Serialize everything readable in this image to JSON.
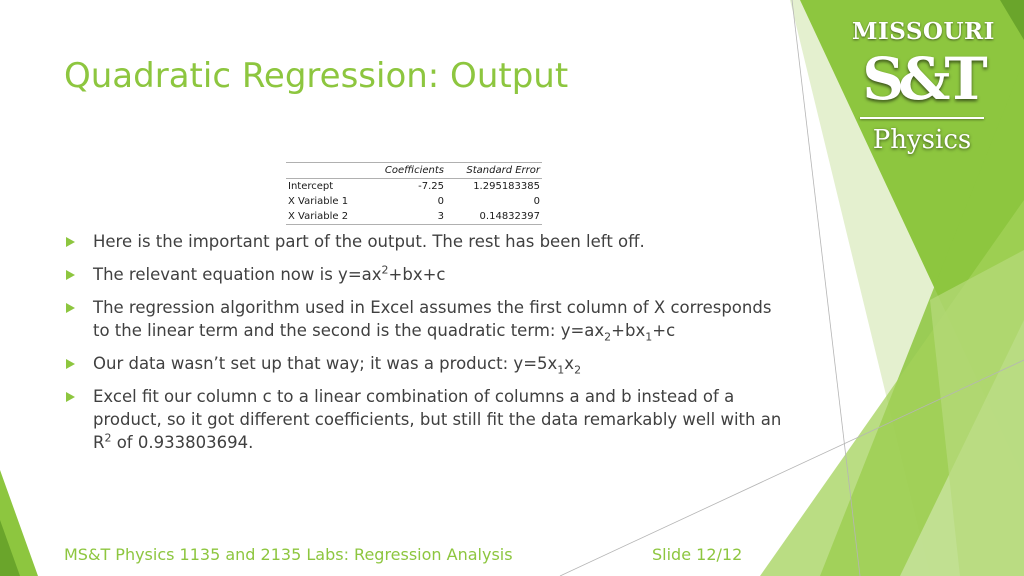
{
  "slide": {
    "title": "Quadratic Regression: Output",
    "accent_color": "#8dc63f"
  },
  "logo": {
    "line1": "MISSOURI",
    "line2": "S&T",
    "line3": "Physics"
  },
  "regression_table": {
    "headers": [
      "",
      "Coefficients",
      "Standard Error"
    ],
    "rows": [
      {
        "label": "Intercept",
        "coefficient": "-7.25",
        "std_error": "1.295183385"
      },
      {
        "label": "X Variable 1",
        "coefficient": "0",
        "std_error": "0"
      },
      {
        "label": "X Variable 2",
        "coefficient": "3",
        "std_error": "0.14832397"
      }
    ]
  },
  "bullets": {
    "b1": "Here is the important part of the output. The rest has been left off.",
    "b2_pre": "The relevant equation now is y=ax",
    "b2_sup": "2",
    "b2_post": "+bx+c",
    "b3_text": "The regression algorithm used in Excel assumes the first column of X corresponds to the linear term and the second is the quadratic term: y=ax",
    "b3_sub1": "2",
    "b3_mid": "+bx",
    "b3_sub2": "1",
    "b3_end": "+c",
    "b4_pre": "Our data wasn’t set up that way; it was a product: y=5x",
    "b4_sub1": "1",
    "b4_mid": "x",
    "b4_sub2": "2",
    "b5_pre": "Excel fit our column c to a linear combination of columns a and b instead of a product, so it got different coefficients, but still fit the data remarkably well with an R",
    "b5_sup": "2",
    "b5_post": " of 0.933803694."
  },
  "footer": {
    "course": "MS&T Physics 1135 and 2135 Labs: Regression Analysis",
    "slide_number": "Slide 12/12"
  },
  "icons": {
    "bullet": "green-triangle-arrow-icon"
  }
}
